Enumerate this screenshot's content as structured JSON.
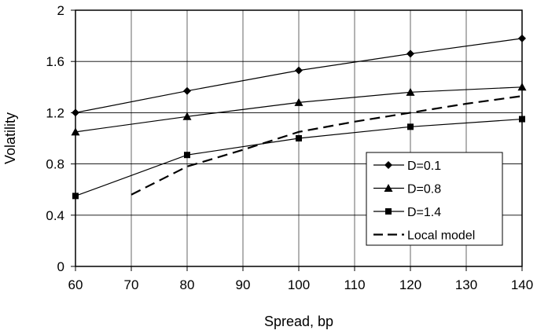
{
  "chart_data": {
    "type": "line",
    "title": "",
    "xlabel": "Spread, bp",
    "ylabel": "Volatility",
    "xlim": [
      60,
      140
    ],
    "ylim": [
      0,
      2
    ],
    "xticks": [
      60,
      70,
      80,
      90,
      100,
      110,
      120,
      130,
      140
    ],
    "yticks": [
      0,
      0.4,
      0.8,
      1.2,
      1.6,
      2
    ],
    "xtick_labels": [
      "60",
      "70",
      "80",
      "90",
      "100",
      "110",
      "120",
      "130",
      "140"
    ],
    "ytick_labels": [
      "0",
      "0.4",
      "0.8",
      "1.2",
      "1.6",
      "2"
    ],
    "grid": true,
    "legend_position": "bottom-right",
    "series": [
      {
        "name": "D=0.1",
        "marker": "diamond",
        "style": "solid",
        "color": "#000000",
        "points": [
          [
            60,
            1.2
          ],
          [
            80,
            1.37
          ],
          [
            100,
            1.53
          ],
          [
            120,
            1.66
          ],
          [
            140,
            1.78
          ]
        ]
      },
      {
        "name": "D=0.8",
        "marker": "triangle",
        "style": "solid",
        "color": "#000000",
        "points": [
          [
            60,
            1.05
          ],
          [
            80,
            1.17
          ],
          [
            100,
            1.28
          ],
          [
            120,
            1.36
          ],
          [
            140,
            1.4
          ]
        ]
      },
      {
        "name": "D=1.4",
        "marker": "square",
        "style": "solid",
        "color": "#000000",
        "points": [
          [
            60,
            0.55
          ],
          [
            80,
            0.87
          ],
          [
            100,
            1.0
          ],
          [
            120,
            1.09
          ],
          [
            140,
            1.15
          ]
        ]
      },
      {
        "name": "Local model",
        "marker": "none",
        "style": "dashed",
        "color": "#000000",
        "points": [
          [
            70,
            0.56
          ],
          [
            80,
            0.78
          ],
          [
            90,
            0.91
          ],
          [
            100,
            1.05
          ],
          [
            110,
            1.13
          ],
          [
            120,
            1.2
          ],
          [
            130,
            1.27
          ],
          [
            140,
            1.33
          ]
        ]
      }
    ]
  }
}
